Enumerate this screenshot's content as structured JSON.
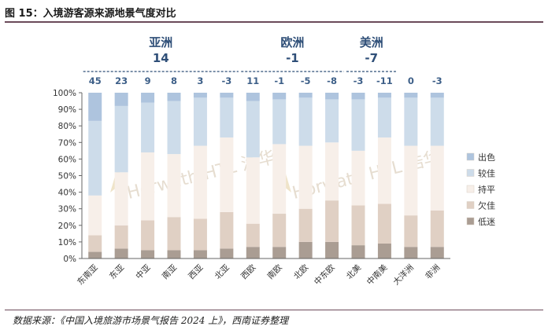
{
  "header": {
    "title": "图 15：入境游客源来源地景气度对比"
  },
  "footer": {
    "source": "数据来源：《中国入境旅游市场景气报告 2024 上》，西南证券整理"
  },
  "watermark": {
    "text": "Horwath HTL 浩华"
  },
  "chart_data": {
    "type": "bar",
    "stacked": true,
    "percent": true,
    "ylim": [
      0,
      100
    ],
    "yticks": [
      "0%",
      "10%",
      "20%",
      "30%",
      "40%",
      "50%",
      "60%",
      "70%",
      "80%",
      "90%",
      "100%"
    ],
    "grid": false,
    "legend_position": "right",
    "categories": [
      "东南亚",
      "东亚",
      "中亚",
      "南亚",
      "西亚",
      "北亚",
      "西欧",
      "南欧",
      "北欧",
      "中东欧",
      "北美",
      "中南美",
      "大洋洲",
      "非洲"
    ],
    "value_labels": [
      "45",
      "23",
      "9",
      "8",
      "3",
      "-3",
      "11",
      "-1",
      "-5",
      "-8",
      "-3",
      "-11",
      "0",
      "-3"
    ],
    "groups": [
      {
        "name": "亚洲",
        "value": "14",
        "span": [
          0,
          5
        ]
      },
      {
        "name": "欧洲",
        "value": "-1",
        "span": [
          6,
          9
        ]
      },
      {
        "name": "美洲",
        "value": "-7",
        "span": [
          10,
          11
        ]
      }
    ],
    "series": [
      {
        "name": "低迷",
        "color": "#aa9d93",
        "values": [
          4,
          6,
          5,
          5,
          5,
          6,
          7,
          7,
          10,
          10,
          8,
          9,
          7,
          7
        ]
      },
      {
        "name": "欠佳",
        "color": "#e0d0c4",
        "values": [
          10,
          14,
          18,
          20,
          19,
          22,
          14,
          20,
          20,
          25,
          24,
          24,
          19,
          22
        ]
      },
      {
        "name": "持平",
        "color": "#f7efe9",
        "values": [
          24,
          32,
          41,
          38,
          44,
          45,
          40,
          42,
          38,
          35,
          33,
          40,
          42,
          39
        ]
      },
      {
        "name": "较佳",
        "color": "#cddcea",
        "values": [
          45,
          40,
          30,
          32,
          29,
          24,
          34,
          27,
          29,
          26,
          31,
          24,
          29,
          29
        ]
      },
      {
        "name": "出色",
        "color": "#aec4de",
        "values": [
          17,
          8,
          6,
          5,
          3,
          3,
          5,
          4,
          3,
          4,
          4,
          3,
          3,
          3
        ]
      }
    ]
  }
}
